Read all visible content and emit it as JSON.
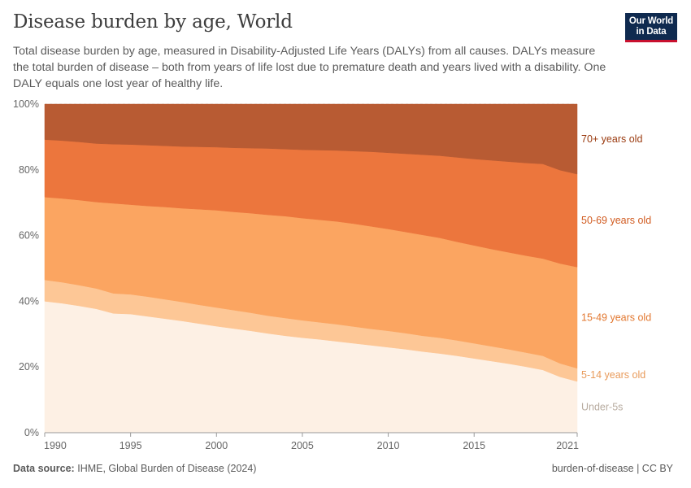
{
  "title": "Disease burden by age, World",
  "subtitle": "Total disease burden by age, measured in Disability-Adjusted Life Years (DALYs) from all causes. DALYs measure the total burden of disease – both from years of life lost due to premature death and years lived with a disability. One DALY equals one lost year of healthy life.",
  "logo": {
    "line1": "Our World",
    "line2": "in Data",
    "bg_color": "#0f2a4f",
    "accent_color": "#c8102e"
  },
  "footer": {
    "source_label": "Data source:",
    "source_text": "IHME, Global Burden of Disease (2024)",
    "right": "burden-of-disease | CC BY"
  },
  "chart_data": {
    "type": "area",
    "stacked": true,
    "relative": true,
    "x": [
      1990,
      1991,
      1992,
      1993,
      1994,
      1995,
      1996,
      1997,
      1998,
      1999,
      2000,
      2001,
      2002,
      2003,
      2004,
      2005,
      2006,
      2007,
      2008,
      2009,
      2010,
      2011,
      2012,
      2013,
      2014,
      2015,
      2016,
      2017,
      2018,
      2019,
      2020,
      2021
    ],
    "xticks": [
      "1990",
      "1995",
      "2000",
      "2005",
      "2010",
      "2015",
      "2021"
    ],
    "yticks": [
      "0%",
      "20%",
      "40%",
      "60%",
      "80%",
      "100%"
    ],
    "ylim": [
      0,
      100
    ],
    "grid": "horizontal dashed",
    "legend_placement": "right, inline labels",
    "series": [
      {
        "name": "Under-5s",
        "color": "#fdf0e4",
        "label_color": "#b8aca0",
        "values": [
          40.0,
          39.4,
          38.6,
          37.7,
          36.3,
          36.1,
          35.4,
          34.7,
          34.0,
          33.2,
          32.4,
          31.7,
          31.0,
          30.2,
          29.5,
          28.9,
          28.4,
          27.8,
          27.2,
          26.6,
          26.0,
          25.4,
          24.7,
          24.1,
          23.4,
          22.6,
          21.8,
          21.0,
          20.1,
          19.1,
          17.0,
          15.6
        ]
      },
      {
        "name": "5-14 years old",
        "color": "#fdc796",
        "label_color": "#e89a5a",
        "values": [
          6.5,
          6.4,
          6.3,
          6.2,
          6.1,
          6.0,
          6.0,
          5.9,
          5.8,
          5.7,
          5.7,
          5.6,
          5.5,
          5.4,
          5.4,
          5.3,
          5.2,
          5.2,
          5.1,
          5.0,
          5.0,
          4.9,
          4.8,
          4.8,
          4.7,
          4.6,
          4.5,
          4.4,
          4.3,
          4.3,
          4.1,
          4.0
        ]
      },
      {
        "name": "15-49 years old",
        "color": "#fba561",
        "label_color": "#e2772f",
        "values": [
          25.2,
          25.5,
          25.9,
          26.3,
          27.4,
          27.3,
          27.6,
          28.1,
          28.5,
          29.1,
          29.6,
          29.9,
          30.3,
          30.7,
          31.0,
          31.1,
          31.2,
          31.3,
          31.3,
          31.2,
          31.0,
          30.8,
          30.7,
          30.4,
          30.0,
          29.8,
          29.6,
          29.5,
          29.5,
          29.6,
          30.4,
          30.8
        ]
      },
      {
        "name": "50-69 years old",
        "color": "#ec763d",
        "label_color": "#d15b20",
        "values": [
          17.5,
          17.6,
          17.7,
          17.8,
          18.0,
          18.3,
          18.5,
          18.6,
          18.8,
          19.0,
          19.2,
          19.5,
          19.8,
          20.2,
          20.4,
          20.8,
          21.2,
          21.6,
          22.1,
          22.7,
          23.2,
          23.8,
          24.4,
          25.0,
          25.7,
          26.3,
          27.0,
          27.6,
          28.2,
          28.8,
          28.4,
          28.3
        ]
      },
      {
        "name": "70+ years old",
        "color": "#b85b33",
        "label_color": "#9a3a0f",
        "values": [
          10.8,
          11.1,
          11.5,
          12.0,
          12.2,
          12.3,
          12.5,
          12.7,
          12.9,
          13.0,
          13.1,
          13.3,
          13.4,
          13.5,
          13.7,
          13.9,
          14.0,
          14.1,
          14.3,
          14.5,
          14.8,
          15.1,
          15.4,
          15.7,
          16.2,
          16.7,
          17.1,
          17.5,
          17.9,
          18.2,
          20.1,
          21.3
        ]
      }
    ]
  }
}
